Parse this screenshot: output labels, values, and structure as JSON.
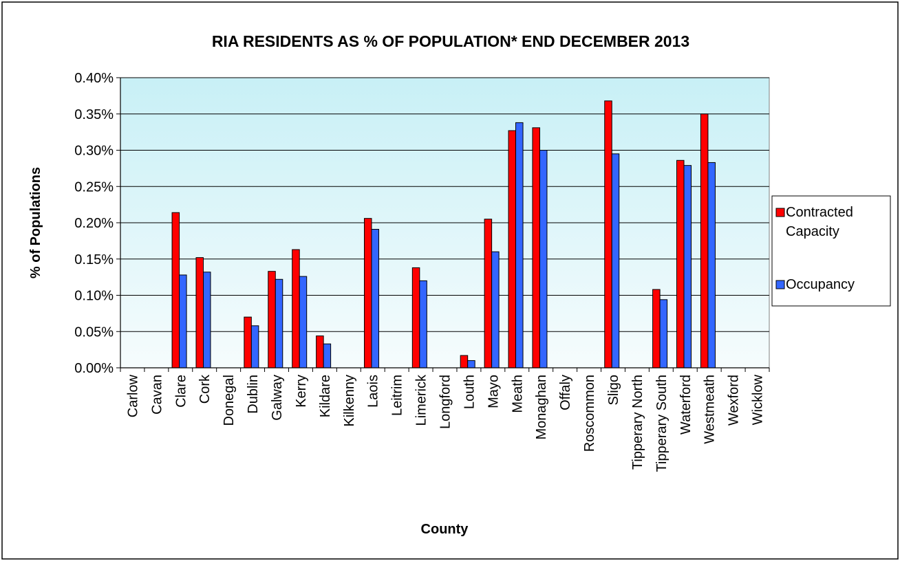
{
  "chart_data": {
    "type": "bar",
    "title": "RIA RESIDENTS AS % OF POPULATION* END DECEMBER 2013",
    "xlabel": "County",
    "ylabel": "% of Populations",
    "ylim": [
      0,
      0.4
    ],
    "yticks": [
      0,
      0.05,
      0.1,
      0.15,
      0.2,
      0.25,
      0.3,
      0.35,
      0.4
    ],
    "ytick_labels": [
      "0.00%",
      "0.05%",
      "0.10%",
      "0.15%",
      "0.20%",
      "0.25%",
      "0.30%",
      "0.35%",
      "0.40%"
    ],
    "grid": true,
    "legend_position": "right",
    "categories": [
      "Carlow",
      "Cavan",
      "Clare",
      "Cork",
      "Donegal",
      "Dublin",
      "Galway",
      "Kerry",
      "Kildare",
      "Kilkenny",
      "Laois",
      "Leitrim",
      "Limerick",
      "Longford",
      "Louth",
      "Mayo",
      "Meath",
      "Monaghan",
      "Offaly",
      "Roscommon",
      "Sligo",
      "Tipperary North",
      "Tipperary South",
      "Waterford",
      "Westmeath",
      "Wexford",
      "Wicklow"
    ],
    "series": [
      {
        "name": "Contracted Capacity",
        "legend_lines": [
          "Contracted",
          "Capacity"
        ],
        "color": "#ff0000",
        "values": [
          0,
          0,
          0.214,
          0.152,
          0,
          0.07,
          0.133,
          0.163,
          0.044,
          0,
          0.206,
          0,
          0.138,
          0,
          0.017,
          0.205,
          0.327,
          0.331,
          0,
          0,
          0.368,
          0,
          0.108,
          0.286,
          0.35,
          0,
          0
        ]
      },
      {
        "name": "Occupancy",
        "legend_lines": [
          "Occupancy"
        ],
        "color": "#3366ff",
        "values": [
          0,
          0,
          0.128,
          0.132,
          0,
          0.058,
          0.122,
          0.126,
          0.033,
          0,
          0.191,
          0,
          0.12,
          0,
          0.01,
          0.16,
          0.338,
          0.3,
          0,
          0,
          0.295,
          0,
          0.094,
          0.279,
          0.283,
          0,
          0
        ]
      }
    ]
  }
}
